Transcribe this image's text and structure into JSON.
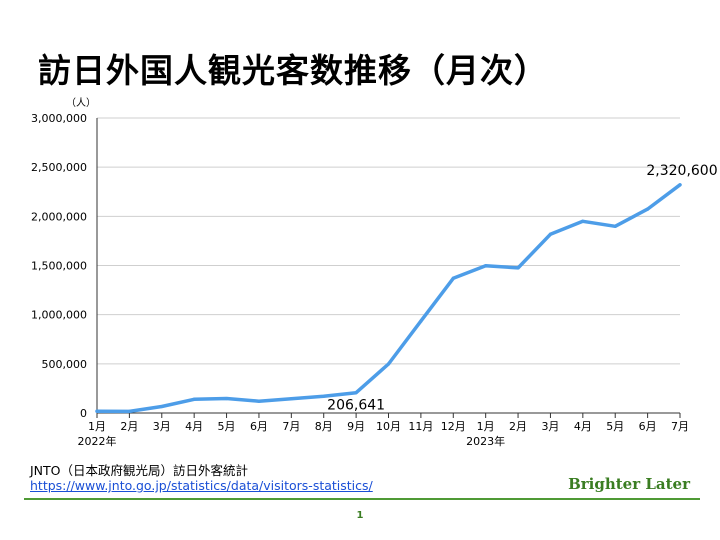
{
  "page": {
    "title": "訪日外国人観光客数推移（月次）",
    "source_label": "JNTO（日本政府観光局）訪日外客統計",
    "source_url": "https://www.jnto.go.jp/statistics/data/visitors-statistics/",
    "brand": "Brighter Later",
    "page_number": "1"
  },
  "colors": {
    "line": "#4d9de8",
    "grid": "#cfcfcf",
    "brand": "#3a7d22"
  },
  "chart_data": {
    "type": "line",
    "title": "訪日外国人観光客数推移（月次）",
    "ylabel": "（人）",
    "ylim": [
      0,
      3000000
    ],
    "yticks": [
      0,
      500000,
      1000000,
      1500000,
      2000000,
      2500000,
      3000000
    ],
    "ytick_labels": [
      "0",
      "500,000",
      "1,000,000",
      "1,500,000",
      "2,000,000",
      "2,500,000",
      "3,000,000"
    ],
    "categories": [
      "1月",
      "2月",
      "3月",
      "4月",
      "5月",
      "6月",
      "7月",
      "8月",
      "9月",
      "10月",
      "11月",
      "12月",
      "1月",
      "2月",
      "3月",
      "4月",
      "5月",
      "6月",
      "7月"
    ],
    "year_labels": [
      {
        "index": 0,
        "label": "2022年"
      },
      {
        "index": 12,
        "label": "2023年"
      }
    ],
    "values": [
      17766,
      16719,
      66121,
      139548,
      147046,
      120430,
      144578,
      169902,
      206641,
      498646,
      934500,
      1370114,
      1497472,
      1475455,
      1817500,
      1949100,
      1898900,
      2073300,
      2320600
    ],
    "annotations": [
      {
        "index": 8,
        "label": "206,641"
      },
      {
        "index": 18,
        "label": "2,320,600"
      }
    ],
    "grid": true
  }
}
